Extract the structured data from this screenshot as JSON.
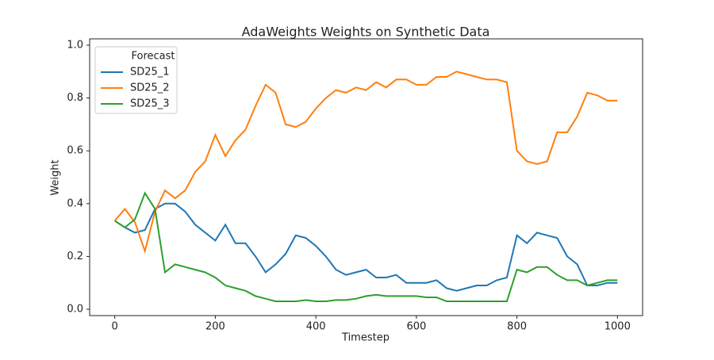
{
  "chart_data": {
    "type": "line",
    "title": "AdaWeights Weights on Synthetic Data",
    "x_label": "Timestep",
    "y_label": "Weight",
    "legend_title": "Forecast",
    "legend": "upper left",
    "x": [
      0,
      20,
      40,
      60,
      80,
      100,
      120,
      140,
      160,
      180,
      200,
      220,
      240,
      260,
      280,
      300,
      320,
      340,
      360,
      380,
      400,
      420,
      440,
      460,
      480,
      500,
      520,
      540,
      560,
      580,
      600,
      620,
      640,
      660,
      680,
      700,
      720,
      740,
      760,
      780,
      800,
      820,
      840,
      860,
      880,
      900,
      920,
      940,
      960,
      980,
      1000
    ],
    "series": [
      {
        "name": "SD25_1",
        "color": "#1f77b4",
        "values": [
          0.335,
          0.31,
          0.29,
          0.3,
          0.38,
          0.4,
          0.4,
          0.37,
          0.32,
          0.29,
          0.26,
          0.32,
          0.25,
          0.25,
          0.2,
          0.14,
          0.17,
          0.21,
          0.28,
          0.27,
          0.24,
          0.2,
          0.15,
          0.13,
          0.14,
          0.15,
          0.12,
          0.12,
          0.13,
          0.1,
          0.1,
          0.1,
          0.11,
          0.08,
          0.07,
          0.08,
          0.09,
          0.09,
          0.11,
          0.12,
          0.28,
          0.25,
          0.29,
          0.28,
          0.27,
          0.2,
          0.17,
          0.09,
          0.09,
          0.1,
          0.1
        ]
      },
      {
        "name": "SD25_2",
        "color": "#ff7f0e",
        "values": [
          0.335,
          0.38,
          0.33,
          0.22,
          0.37,
          0.45,
          0.42,
          0.45,
          0.52,
          0.56,
          0.66,
          0.58,
          0.64,
          0.68,
          0.77,
          0.85,
          0.82,
          0.7,
          0.69,
          0.71,
          0.76,
          0.8,
          0.83,
          0.82,
          0.84,
          0.83,
          0.86,
          0.84,
          0.87,
          0.87,
          0.85,
          0.85,
          0.88,
          0.88,
          0.9,
          0.89,
          0.88,
          0.87,
          0.87,
          0.86,
          0.6,
          0.56,
          0.55,
          0.56,
          0.67,
          0.67,
          0.73,
          0.82,
          0.81,
          0.79,
          0.79
        ]
      },
      {
        "name": "SD25_3",
        "color": "#2ca02c",
        "values": [
          0.335,
          0.31,
          0.34,
          0.44,
          0.38,
          0.14,
          0.17,
          0.16,
          0.15,
          0.14,
          0.12,
          0.09,
          0.08,
          0.07,
          0.05,
          0.04,
          0.03,
          0.03,
          0.03,
          0.035,
          0.03,
          0.03,
          0.035,
          0.035,
          0.04,
          0.05,
          0.055,
          0.05,
          0.05,
          0.05,
          0.05,
          0.045,
          0.045,
          0.03,
          0.03,
          0.03,
          0.03,
          0.03,
          0.03,
          0.03,
          0.15,
          0.14,
          0.16,
          0.16,
          0.13,
          0.11,
          0.11,
          0.09,
          0.1,
          0.11,
          0.11
        ]
      }
    ],
    "xlim": [
      -50,
      1050
    ],
    "ylim": [
      -0.024,
      1.024
    ],
    "xticks": [
      0,
      200,
      400,
      600,
      800,
      1000
    ],
    "yticks": [
      {
        "value": 0,
        "label": "0.0"
      },
      0.2,
      0.4,
      0.6,
      0.8,
      {
        "value": 1,
        "label": "1.0"
      }
    ]
  }
}
